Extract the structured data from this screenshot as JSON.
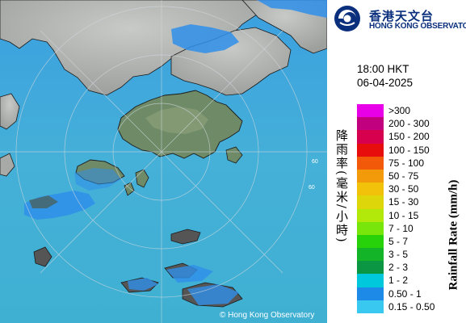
{
  "organization": {
    "name_cn": "香港天文台",
    "name_en": "HONG KONG OBSERVATORY"
  },
  "timestamp": {
    "time": "18:00 HKT",
    "date": "06-04-2025"
  },
  "legend": {
    "title_cn": "降雨率(毫米/小時)",
    "title_en": "Rainfall Rate (mm/h)",
    "items": [
      {
        "label": ">300",
        "color": "#e800e8"
      },
      {
        "label": "200 - 300",
        "color": "#c0007e"
      },
      {
        "label": "150 - 200",
        "color": "#d6004f"
      },
      {
        "label": "100 - 150",
        "color": "#e80d0d"
      },
      {
        "label": "75 - 100",
        "color": "#f25a0a"
      },
      {
        "label": "50 - 75",
        "color": "#f29a0a"
      },
      {
        "label": "30 - 50",
        "color": "#f2c20a"
      },
      {
        "label": "15 - 30",
        "color": "#dcd60a"
      },
      {
        "label": "10 - 15",
        "color": "#b2e80a"
      },
      {
        "label": "7 - 10",
        "color": "#78e60a"
      },
      {
        "label": "5 - 7",
        "color": "#28d20a"
      },
      {
        "label": "3 - 5",
        "color": "#14b428"
      },
      {
        "label": "2 - 3",
        "color": "#0a9642"
      },
      {
        "label": "1 - 2",
        "color": "#00c8dc"
      },
      {
        "label": "0.50 - 1",
        "color": "#1e8ae8"
      },
      {
        "label": "0.15 - 0.50",
        "color": "#38c8f0"
      }
    ]
  },
  "map": {
    "range_ring_labels": [
      "60",
      "60"
    ],
    "colors": {
      "sea": "#3fa3dc",
      "land_mainland": "#b4b6b4",
      "land_hk": "#6f8a66",
      "rain": "#2f8fea",
      "coast": "#1a1a1a"
    }
  },
  "copyright": "© Hong Kong Observatory"
}
